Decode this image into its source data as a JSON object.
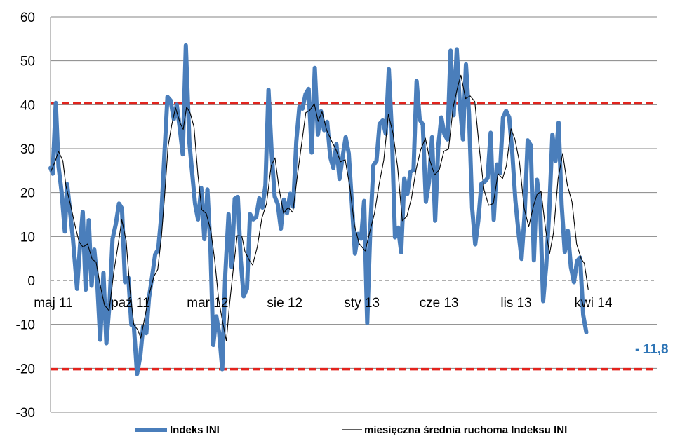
{
  "chart_data": {
    "type": "line",
    "title": "",
    "xlabel": "",
    "ylabel": "",
    "ylim": [
      -30,
      60
    ],
    "y_ticks": [
      60,
      50,
      40,
      30,
      20,
      10,
      0,
      -10,
      -20,
      -30
    ],
    "x_ticks": [
      {
        "label": "maj 11",
        "x": 0
      },
      {
        "label": "paź 11",
        "x": 5
      },
      {
        "label": "mar 12",
        "x": 10
      },
      {
        "label": "sie 12",
        "x": 15
      },
      {
        "label": "sty 13",
        "x": 20
      },
      {
        "label": "cze 13",
        "x": 25
      },
      {
        "label": "lis 13",
        "x": 30
      },
      {
        "label": "kwi 14",
        "x": 35
      }
    ],
    "x_range": [
      0,
      39.3
    ],
    "grid": "horizontal",
    "legend_position": "bottom",
    "reference_lines": [
      {
        "value": 40.3,
        "color": "#e3231d",
        "style": "dashed"
      },
      {
        "value": -20.2,
        "color": "#e3231d",
        "style": "dashed"
      },
      {
        "value": 0,
        "color": "#7f7f7f",
        "style": "dashed"
      }
    ],
    "end_label": "- 11,8",
    "series": [
      {
        "name": "Indeks INI",
        "color": "#4a7ebb",
        "width": 6,
        "points": [
          [
            0.0,
            25.6
          ],
          [
            0.14,
            24.3
          ],
          [
            0.34,
            40.4
          ],
          [
            0.52,
            26.0
          ],
          [
            0.72,
            20.1
          ],
          [
            0.93,
            11.1
          ],
          [
            1.08,
            21.9
          ],
          [
            1.27,
            15.6
          ],
          [
            1.45,
            9.6
          ],
          [
            1.72,
            -1.9
          ],
          [
            1.92,
            8.3
          ],
          [
            2.09,
            15.6
          ],
          [
            2.28,
            -2.1
          ],
          [
            2.48,
            13.7
          ],
          [
            2.66,
            -1.2
          ],
          [
            2.84,
            7.0
          ],
          [
            3.02,
            0.2
          ],
          [
            3.22,
            -13.5
          ],
          [
            3.43,
            1.7
          ],
          [
            3.62,
            -14.3
          ],
          [
            3.83,
            -5.0
          ],
          [
            4.02,
            9.5
          ],
          [
            4.23,
            12.8
          ],
          [
            4.44,
            17.5
          ],
          [
            4.63,
            16.4
          ],
          [
            4.83,
            -0.4
          ],
          [
            5.05,
            0.6
          ],
          [
            5.24,
            -10.1
          ],
          [
            5.4,
            -10.3
          ],
          [
            5.61,
            -21.3
          ],
          [
            5.82,
            -17.1
          ],
          [
            6.0,
            -10.5
          ],
          [
            6.21,
            -12.0
          ],
          [
            6.38,
            -4.0
          ],
          [
            6.58,
            0.8
          ],
          [
            6.78,
            5.9
          ],
          [
            6.98,
            7.1
          ],
          [
            7.18,
            14.8
          ],
          [
            7.38,
            28.3
          ],
          [
            7.58,
            41.8
          ],
          [
            7.78,
            41.0
          ],
          [
            7.99,
            36.7
          ],
          [
            8.18,
            40.0
          ],
          [
            8.38,
            34.6
          ],
          [
            8.57,
            28.7
          ],
          [
            8.77,
            53.5
          ],
          [
            9.0,
            31.4
          ],
          [
            9.17,
            24.9
          ],
          [
            9.37,
            17.4
          ],
          [
            9.56,
            13.9
          ],
          [
            9.77,
            21.0
          ],
          [
            9.97,
            9.4
          ],
          [
            10.17,
            20.7
          ],
          [
            10.37,
            6.9
          ],
          [
            10.55,
            -14.7
          ],
          [
            10.75,
            -8.2
          ],
          [
            10.93,
            -11.9
          ],
          [
            11.13,
            -20.2
          ],
          [
            11.33,
            1.6
          ],
          [
            11.54,
            15.1
          ],
          [
            11.74,
            3.1
          ],
          [
            11.94,
            18.6
          ],
          [
            12.14,
            19.0
          ],
          [
            12.33,
            4.6
          ],
          [
            12.52,
            -3.6
          ],
          [
            12.73,
            -1.9
          ],
          [
            12.93,
            15.1
          ],
          [
            13.13,
            13.9
          ],
          [
            13.33,
            14.4
          ],
          [
            13.53,
            18.7
          ],
          [
            13.73,
            16.6
          ],
          [
            13.93,
            21.6
          ],
          [
            14.13,
            43.4
          ],
          [
            14.33,
            29.4
          ],
          [
            14.53,
            19.1
          ],
          [
            14.73,
            17.4
          ],
          [
            14.93,
            11.8
          ],
          [
            15.13,
            18.4
          ],
          [
            15.33,
            15.3
          ],
          [
            15.53,
            19.7
          ],
          [
            15.73,
            16.8
          ],
          [
            15.93,
            31.6
          ],
          [
            16.13,
            39.5
          ],
          [
            16.33,
            39.1
          ],
          [
            16.53,
            42.4
          ],
          [
            16.73,
            43.6
          ],
          [
            16.93,
            29.1
          ],
          [
            17.13,
            48.4
          ],
          [
            17.33,
            33.2
          ],
          [
            17.53,
            38.5
          ],
          [
            17.73,
            34.2
          ],
          [
            17.93,
            36.1
          ],
          [
            18.13,
            28.1
          ],
          [
            18.33,
            25.6
          ],
          [
            18.53,
            31.0
          ],
          [
            18.73,
            23.1
          ],
          [
            18.93,
            28.1
          ],
          [
            19.13,
            32.6
          ],
          [
            19.33,
            28.9
          ],
          [
            19.53,
            17.6
          ],
          [
            19.73,
            6.1
          ],
          [
            19.93,
            10.6
          ],
          [
            20.13,
            9.5
          ],
          [
            20.33,
            18.1
          ],
          [
            20.53,
            -9.7
          ],
          [
            20.73,
            11.8
          ],
          [
            20.93,
            26.2
          ],
          [
            21.13,
            27.2
          ],
          [
            21.33,
            35.6
          ],
          [
            21.53,
            36.4
          ],
          [
            21.73,
            33.4
          ],
          [
            21.93,
            48.1
          ],
          [
            22.13,
            33.4
          ],
          [
            22.33,
            9.8
          ],
          [
            22.53,
            12.0
          ],
          [
            22.73,
            6.4
          ],
          [
            22.93,
            23.2
          ],
          [
            23.13,
            19.7
          ],
          [
            23.33,
            24.7
          ],
          [
            23.53,
            25.1
          ],
          [
            23.73,
            45.4
          ],
          [
            23.93,
            36.6
          ],
          [
            24.13,
            35.5
          ],
          [
            24.33,
            17.9
          ],
          [
            24.53,
            22.4
          ],
          [
            24.73,
            32.6
          ],
          [
            24.93,
            13.6
          ],
          [
            25.13,
            30.4
          ],
          [
            25.33,
            37.1
          ],
          [
            25.53,
            33.3
          ],
          [
            25.73,
            32.1
          ],
          [
            25.93,
            52.3
          ],
          [
            26.13,
            37.6
          ],
          [
            26.33,
            52.6
          ],
          [
            26.53,
            40.1
          ],
          [
            26.73,
            32.1
          ],
          [
            26.93,
            49.2
          ],
          [
            27.13,
            37.7
          ],
          [
            27.33,
            16.6
          ],
          [
            27.53,
            8.2
          ],
          [
            27.73,
            13.6
          ],
          [
            27.93,
            22.0
          ],
          [
            28.13,
            22.4
          ],
          [
            28.33,
            23.3
          ],
          [
            28.53,
            33.6
          ],
          [
            28.73,
            13.8
          ],
          [
            28.93,
            26.4
          ],
          [
            29.13,
            24.4
          ],
          [
            29.33,
            37.1
          ],
          [
            29.53,
            38.6
          ],
          [
            29.73,
            37.1
          ],
          [
            29.93,
            29.1
          ],
          [
            30.13,
            18.3
          ],
          [
            30.33,
            11.1
          ],
          [
            30.53,
            4.9
          ],
          [
            30.73,
            15.0
          ],
          [
            30.93,
            31.9
          ],
          [
            31.13,
            30.8
          ],
          [
            31.33,
            4.6
          ],
          [
            31.53,
            22.9
          ],
          [
            31.73,
            17.4
          ],
          [
            31.93,
            -4.7
          ],
          [
            32.13,
            3.4
          ],
          [
            32.33,
            16.2
          ],
          [
            32.53,
            33.2
          ],
          [
            32.73,
            27.2
          ],
          [
            32.93,
            35.9
          ],
          [
            33.13,
            17.2
          ],
          [
            33.33,
            6.5
          ],
          [
            33.53,
            11.3
          ],
          [
            33.73,
            3.1
          ],
          [
            33.93,
            -0.4
          ],
          [
            34.13,
            4.4
          ],
          [
            34.33,
            5.2
          ],
          [
            34.53,
            -7.9
          ],
          [
            34.73,
            -11.8
          ]
        ]
      },
      {
        "name": "miesięczna średnia ruchoma Indeksu INI",
        "color": "#000000",
        "width": 1.1,
        "points": [
          [
            0.0,
            24.6
          ],
          [
            0.3,
            27.1
          ],
          [
            0.52,
            29.4
          ],
          [
            0.8,
            27.2
          ],
          [
            1.0,
            21.5
          ],
          [
            1.3,
            17.1
          ],
          [
            1.6,
            12.3
          ],
          [
            1.85,
            8.8
          ],
          [
            2.1,
            7.6
          ],
          [
            2.4,
            8.3
          ],
          [
            2.7,
            4.8
          ],
          [
            2.95,
            4.2
          ],
          [
            3.2,
            -0.8
          ],
          [
            3.5,
            -5.6
          ],
          [
            3.8,
            -6.9
          ],
          [
            4.1,
            1.8
          ],
          [
            4.4,
            8.5
          ],
          [
            4.62,
            13.8
          ],
          [
            4.9,
            9.1
          ],
          [
            5.15,
            -2.1
          ],
          [
            5.4,
            -10.1
          ],
          [
            5.65,
            -11.2
          ],
          [
            5.85,
            -13.1
          ],
          [
            6.1,
            -8.6
          ],
          [
            6.4,
            -3.1
          ],
          [
            6.7,
            0.9
          ],
          [
            6.95,
            2.5
          ],
          [
            7.2,
            10.4
          ],
          [
            7.4,
            19.6
          ],
          [
            7.62,
            30.5
          ],
          [
            7.85,
            35.3
          ],
          [
            8.1,
            39.3
          ],
          [
            8.4,
            35.8
          ],
          [
            8.6,
            34.4
          ],
          [
            8.82,
            39.5
          ],
          [
            9.05,
            38.1
          ],
          [
            9.3,
            34.9
          ],
          [
            9.55,
            24.1
          ],
          [
            9.8,
            16.1
          ],
          [
            10.1,
            15.2
          ],
          [
            10.4,
            11.1
          ],
          [
            10.65,
            4.4
          ],
          [
            10.9,
            -4.4
          ],
          [
            11.15,
            -9.3
          ],
          [
            11.4,
            -13.8
          ],
          [
            11.6,
            -5.6
          ],
          [
            11.85,
            2.7
          ],
          [
            12.1,
            10.2
          ],
          [
            12.4,
            10.1
          ],
          [
            12.6,
            6.6
          ],
          [
            12.9,
            4.5
          ],
          [
            13.1,
            3.5
          ],
          [
            13.4,
            7.6
          ],
          [
            13.7,
            14.2
          ],
          [
            14.0,
            17.5
          ],
          [
            14.3,
            26.1
          ],
          [
            14.55,
            27.9
          ],
          [
            14.8,
            21.2
          ],
          [
            15.1,
            15.3
          ],
          [
            15.4,
            16.6
          ],
          [
            15.7,
            15.5
          ],
          [
            16.0,
            23.9
          ],
          [
            16.3,
            31.8
          ],
          [
            16.55,
            38.2
          ],
          [
            16.8,
            38.7
          ],
          [
            17.1,
            40.2
          ],
          [
            17.35,
            36.2
          ],
          [
            17.6,
            38.4
          ],
          [
            17.9,
            34.2
          ],
          [
            18.2,
            31.9
          ],
          [
            18.5,
            29.8
          ],
          [
            18.8,
            27.0
          ],
          [
            19.1,
            27.5
          ],
          [
            19.4,
            21.3
          ],
          [
            19.7,
            12.6
          ],
          [
            20.0,
            8.4
          ],
          [
            20.4,
            6.7
          ],
          [
            20.7,
            11.1
          ],
          [
            21.0,
            15.3
          ],
          [
            21.3,
            21.9
          ],
          [
            21.6,
            27.4
          ],
          [
            21.9,
            37.8
          ],
          [
            22.2,
            33.5
          ],
          [
            22.5,
            25.7
          ],
          [
            22.8,
            13.6
          ],
          [
            23.1,
            14.6
          ],
          [
            23.4,
            18.7
          ],
          [
            23.7,
            25.3
          ],
          [
            24.0,
            29.8
          ],
          [
            24.3,
            32.4
          ],
          [
            24.6,
            27.2
          ],
          [
            24.9,
            24.0
          ],
          [
            25.2,
            25.2
          ],
          [
            25.5,
            29.4
          ],
          [
            25.8,
            29.9
          ],
          [
            26.1,
            39.4
          ],
          [
            26.4,
            44.2
          ],
          [
            26.6,
            46.7
          ],
          [
            26.9,
            41.4
          ],
          [
            27.2,
            42.0
          ],
          [
            27.5,
            40.7
          ],
          [
            27.8,
            29.8
          ],
          [
            28.1,
            20.6
          ],
          [
            28.4,
            17.1
          ],
          [
            28.7,
            17.5
          ],
          [
            29.0,
            24.3
          ],
          [
            29.3,
            23.2
          ],
          [
            29.55,
            26.1
          ],
          [
            29.85,
            34.5
          ],
          [
            30.1,
            32.2
          ],
          [
            30.4,
            26.9
          ],
          [
            30.7,
            16.5
          ],
          [
            31.0,
            12.2
          ],
          [
            31.3,
            16.9
          ],
          [
            31.55,
            19.7
          ],
          [
            31.8,
            20.2
          ],
          [
            32.1,
            11.4
          ],
          [
            32.35,
            6.1
          ],
          [
            32.6,
            10.8
          ],
          [
            32.9,
            23.2
          ],
          [
            33.2,
            28.9
          ],
          [
            33.5,
            21.7
          ],
          [
            33.8,
            17.9
          ],
          [
            34.1,
            8.3
          ],
          [
            34.4,
            4.9
          ],
          [
            34.6,
            3.9
          ],
          [
            34.85,
            -2.0
          ]
        ]
      }
    ]
  }
}
